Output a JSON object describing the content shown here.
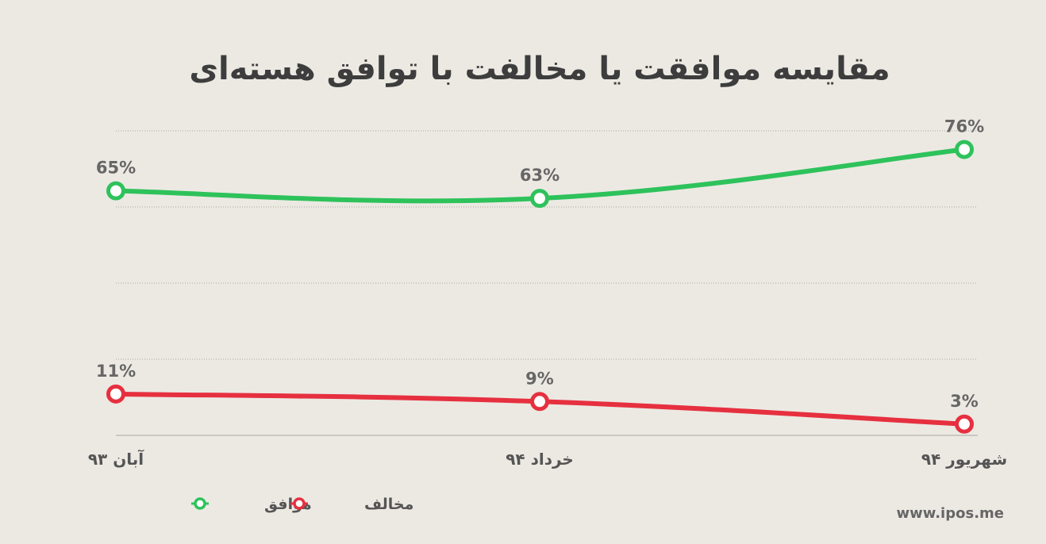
{
  "chart_data": {
    "type": "line",
    "title": "مقایسه موافقت یا مخالفت با توافق هسته‌ای",
    "categories": [
      "آبان ۹۳",
      "خرداد ۹۴",
      "شهریور ۹۴"
    ],
    "series": [
      {
        "name": "موافق",
        "values": [
          65,
          63,
          76
        ],
        "labels": [
          "65%",
          "63%",
          "76%"
        ],
        "color": "#2ec25b"
      },
      {
        "name": "مخالف",
        "values": [
          11,
          9,
          3
        ],
        "labels": [
          "11%",
          "9%",
          "3%"
        ],
        "color": "#e6303f"
      }
    ],
    "ylim": [
      0,
      82
    ],
    "grid": true,
    "legend_position": "bottom-left"
  },
  "source": "www.ipos.me"
}
